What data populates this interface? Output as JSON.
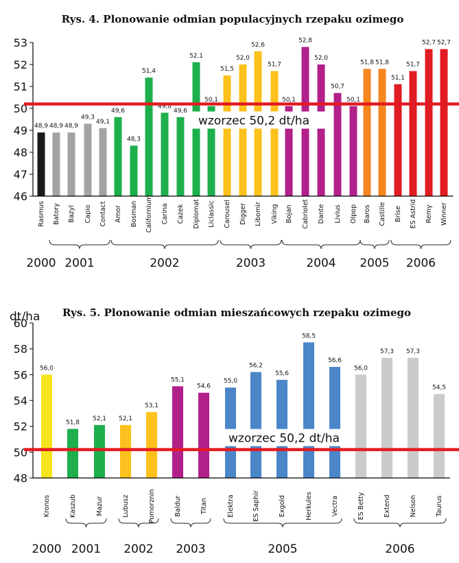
{
  "chart_data": [
    {
      "type": "bar",
      "title": "Rys. 4. Plonowanie odmian populacyjnych rzepaku ozimego",
      "ylim": [
        46,
        53
      ],
      "yticks": [
        46,
        47,
        48,
        49,
        50,
        51,
        52,
        53
      ],
      "grid": false,
      "reference_line": {
        "value": 50.2,
        "label": "wzorzec 50,2 dt/ha",
        "color": "#e11b22"
      },
      "groups": [
        {
          "year": "2000",
          "color": "#1a1a1a",
          "categories": [
            "Rasmus"
          ],
          "values": [
            48.9
          ],
          "labels": [
            "48,9"
          ]
        },
        {
          "year": "2001",
          "color": "#a3a3a3",
          "categories": [
            "Batory",
            "Bazyl",
            "Capio",
            "Contact"
          ],
          "values": [
            48.9,
            48.9,
            49.3,
            49.1
          ],
          "labels": [
            "48,9",
            "48,9",
            "49,3",
            "49,1"
          ]
        },
        {
          "year": "2002",
          "color": "#1daf4c",
          "categories": [
            "Amor",
            "Bosman",
            "Californium",
            "Carina",
            "Cazek",
            "Diplomat",
            "Liclassic"
          ],
          "values": [
            49.6,
            48.3,
            51.4,
            49.8,
            49.6,
            52.1,
            50.1
          ],
          "labels": [
            "49,6",
            "48,3",
            "51,4",
            "49,8",
            "49,6",
            "52,1",
            "50,1"
          ]
        },
        {
          "year": "2003",
          "color": "#fcc11c",
          "categories": [
            "Carousel",
            "Digger",
            "Libomir",
            "Viking"
          ],
          "values": [
            51.5,
            52.0,
            52.6,
            51.7
          ],
          "labels": [
            "51,5",
            "52,0",
            "52,6",
            "51,7"
          ]
        },
        {
          "year": "2004",
          "color": "#b2208a",
          "categories": [
            "Bojan",
            "Cabriolet",
            "Dante",
            "Livius",
            "Olpop"
          ],
          "values": [
            50.1,
            52.8,
            52.0,
            50.7,
            50.1
          ],
          "labels": [
            "50,1",
            "52,8",
            "52,0",
            "50,7",
            "50,1"
          ]
        },
        {
          "year": "2005",
          "color": "#f6861f",
          "categories": [
            "Baros",
            "Castille"
          ],
          "values": [
            51.8,
            51.8
          ],
          "labels": [
            "51,8",
            "51,8"
          ]
        },
        {
          "year": "2006",
          "color": "#e11b22",
          "categories": [
            "Brise",
            "ES Astrid",
            "Remy",
            "Winner"
          ],
          "values": [
            51.1,
            51.7,
            52.7,
            52.7
          ],
          "labels": [
            "51,1",
            "51,7",
            "52,7",
            "52,7"
          ]
        }
      ]
    },
    {
      "type": "bar",
      "title": "Rys. 5. Plonowanie odmian mieszańcowych rzepaku ozimego",
      "ylabel": "dt/ha",
      "ylim": [
        48,
        60
      ],
      "yticks": [
        48,
        50,
        52,
        54,
        56,
        58,
        60
      ],
      "grid": false,
      "reference_line": {
        "value": 50.2,
        "label": "wzorzec 50,2 dt/ha",
        "color": "#e11b22"
      },
      "groups": [
        {
          "year": "2000",
          "color": "#f6e41c",
          "categories": [
            "Kronos"
          ],
          "values": [
            56.0
          ],
          "labels": [
            "56,0"
          ]
        },
        {
          "year": "2001",
          "color": "#1daf4c",
          "categories": [
            "Kaszub",
            "Mazur"
          ],
          "values": [
            51.8,
            52.1
          ],
          "labels": [
            "51,8",
            "52,1"
          ]
        },
        {
          "year": "2002",
          "color": "#fcc11c",
          "categories": [
            "Lubusz",
            "Pomorznin"
          ],
          "values": [
            52.1,
            53.1
          ],
          "labels": [
            "52,1",
            "53,1"
          ]
        },
        {
          "year": "2003",
          "color": "#b2208a",
          "categories": [
            "Baldur",
            "Titan"
          ],
          "values": [
            55.1,
            54.6
          ],
          "labels": [
            "55,1",
            "54,6"
          ]
        },
        {
          "year": "2005",
          "color": "#4a86c8",
          "categories": [
            "Elektra",
            "ES Saphir",
            "Exgold",
            "Herkules",
            "Vectra"
          ],
          "values": [
            55.0,
            56.2,
            55.6,
            58.5,
            56.6
          ],
          "labels": [
            "55,0",
            "56,2",
            "55,6",
            "58,5",
            "56,6"
          ]
        },
        {
          "year": "2006",
          "color": "#cbcbcb",
          "categories": [
            "ES Betty",
            "Extend",
            "Nelson",
            "Taurus"
          ],
          "values": [
            56.0,
            57.3,
            57.3,
            54.5
          ],
          "labels": [
            "56,0",
            "57,3",
            "57,3",
            "54,5"
          ]
        }
      ]
    }
  ]
}
